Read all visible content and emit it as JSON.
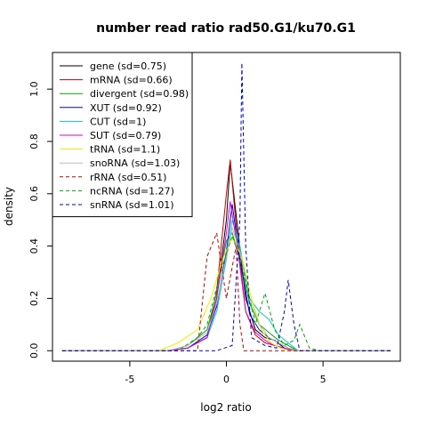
{
  "chart_data": {
    "type": "line",
    "title": "number read ratio rad50.G1/ku70.G1",
    "xlabel": "log2 ratio",
    "ylabel": "density",
    "xlim": [
      -9,
      9
    ],
    "ylim": [
      0,
      1.1
    ],
    "xticks": [
      -5,
      0,
      5
    ],
    "yticks": [
      0.0,
      0.2,
      0.4,
      0.6,
      0.8,
      1.0
    ],
    "xtick_labels": [
      "-5",
      "0",
      "5"
    ],
    "ytick_labels": [
      "0.0",
      "0.2",
      "0.4",
      "0.6",
      "0.8",
      "1.0"
    ],
    "legend_position": "top-left",
    "grid": false,
    "series": [
      {
        "name": "gene (sd=0.75)",
        "color": "#000000",
        "dash": "solid",
        "points": [
          [
            -8.5,
            0
          ],
          [
            -3,
            0
          ],
          [
            -2,
            0.01
          ],
          [
            -1,
            0.05
          ],
          [
            -0.5,
            0.2
          ],
          [
            0,
            0.5
          ],
          [
            0.2,
            0.72
          ],
          [
            0.5,
            0.52
          ],
          [
            1,
            0.2
          ],
          [
            1.5,
            0.08
          ],
          [
            2,
            0.05
          ],
          [
            2.5,
            0.04
          ],
          [
            3,
            0.01
          ],
          [
            3.5,
            0
          ],
          [
            8.5,
            0
          ]
        ]
      },
      {
        "name": "mRNA (sd=0.66)",
        "color": "#cc0000",
        "dash": "solid",
        "points": [
          [
            -8.5,
            0
          ],
          [
            -3,
            0
          ],
          [
            -2,
            0.01
          ],
          [
            -1,
            0.05
          ],
          [
            -0.5,
            0.23
          ],
          [
            0,
            0.6
          ],
          [
            0.2,
            0.73
          ],
          [
            0.5,
            0.48
          ],
          [
            1,
            0.15
          ],
          [
            1.5,
            0.06
          ],
          [
            2,
            0.03
          ],
          [
            2.5,
            0.02
          ],
          [
            3,
            0.01
          ],
          [
            3.5,
            0
          ],
          [
            8.5,
            0
          ]
        ]
      },
      {
        "name": "divergent (sd=0.98)",
        "color": "#00aa00",
        "dash": "solid",
        "points": [
          [
            -8.5,
            0
          ],
          [
            -3,
            0
          ],
          [
            -2,
            0.02
          ],
          [
            -1,
            0.08
          ],
          [
            -0.5,
            0.22
          ],
          [
            0,
            0.42
          ],
          [
            0.3,
            0.45
          ],
          [
            0.7,
            0.35
          ],
          [
            1.2,
            0.18
          ],
          [
            1.7,
            0.1
          ],
          [
            2.2,
            0.07
          ],
          [
            2.7,
            0.04
          ],
          [
            3.2,
            0.02
          ],
          [
            3.7,
            0
          ],
          [
            8.5,
            0
          ]
        ]
      },
      {
        "name": "XUT (sd=0.92)",
        "color": "#0000cc",
        "dash": "solid",
        "points": [
          [
            -8.5,
            0
          ],
          [
            -3,
            0
          ],
          [
            -2,
            0.01
          ],
          [
            -1,
            0.06
          ],
          [
            -0.5,
            0.17
          ],
          [
            0,
            0.38
          ],
          [
            0.3,
            0.56
          ],
          [
            0.7,
            0.35
          ],
          [
            1.2,
            0.14
          ],
          [
            1.7,
            0.08
          ],
          [
            2.2,
            0.05
          ],
          [
            2.7,
            0.03
          ],
          [
            3.2,
            0.01
          ],
          [
            3.7,
            0
          ],
          [
            8.5,
            0
          ]
        ]
      },
      {
        "name": "CUT (sd=1)",
        "color": "#00cccc",
        "dash": "solid",
        "points": [
          [
            -8.5,
            0
          ],
          [
            -3,
            0
          ],
          [
            -2,
            0.01
          ],
          [
            -1,
            0.05
          ],
          [
            -0.5,
            0.15
          ],
          [
            0,
            0.35
          ],
          [
            0.3,
            0.5
          ],
          [
            0.7,
            0.4
          ],
          [
            1.2,
            0.2
          ],
          [
            1.7,
            0.15
          ],
          [
            2.2,
            0.12
          ],
          [
            2.7,
            0.06
          ],
          [
            3.2,
            0.03
          ],
          [
            3.7,
            0
          ],
          [
            8.5,
            0
          ]
        ]
      },
      {
        "name": "SUT (sd=0.79)",
        "color": "#dd00dd",
        "dash": "solid",
        "points": [
          [
            -8.5,
            0
          ],
          [
            -3,
            0
          ],
          [
            -2,
            0.01
          ],
          [
            -1,
            0.05
          ],
          [
            -0.5,
            0.2
          ],
          [
            0,
            0.45
          ],
          [
            0.2,
            0.57
          ],
          [
            0.6,
            0.38
          ],
          [
            1,
            0.15
          ],
          [
            1.5,
            0.07
          ],
          [
            2,
            0.04
          ],
          [
            2.5,
            0.02
          ],
          [
            3,
            0.01
          ],
          [
            3.5,
            0
          ],
          [
            8.5,
            0
          ]
        ]
      },
      {
        "name": "tRNA (sd=1.1)",
        "color": "#eeee00",
        "dash": "solid",
        "points": [
          [
            -8.5,
            0
          ],
          [
            -3.5,
            0
          ],
          [
            -2.5,
            0.03
          ],
          [
            -1.5,
            0.08
          ],
          [
            -0.8,
            0.2
          ],
          [
            -0.2,
            0.35
          ],
          [
            0.3,
            0.43
          ],
          [
            0.8,
            0.36
          ],
          [
            1.3,
            0.2
          ],
          [
            1.8,
            0.08
          ],
          [
            2.3,
            0.03
          ],
          [
            2.8,
            0.01
          ],
          [
            3.3,
            0
          ],
          [
            8.5,
            0
          ]
        ]
      },
      {
        "name": "snoRNA (sd=1.03)",
        "color": "#bbbbbb",
        "dash": "solid",
        "points": [
          [
            -8.5,
            0
          ],
          [
            -3,
            0
          ],
          [
            -2,
            0.02
          ],
          [
            -1,
            0.07
          ],
          [
            -0.5,
            0.18
          ],
          [
            0,
            0.36
          ],
          [
            0.3,
            0.47
          ],
          [
            0.7,
            0.38
          ],
          [
            1.2,
            0.2
          ],
          [
            1.7,
            0.1
          ],
          [
            2.2,
            0.05
          ],
          [
            2.7,
            0.03
          ],
          [
            3.2,
            0.01
          ],
          [
            3.7,
            0
          ],
          [
            8.5,
            0
          ]
        ]
      },
      {
        "name": "rRNA (sd=0.51)",
        "color": "#cc0000",
        "dash": "dashed",
        "points": [
          [
            -8.5,
            0
          ],
          [
            -1.5,
            0
          ],
          [
            -1,
            0.36
          ],
          [
            -0.5,
            0.45
          ],
          [
            0,
            0.2
          ],
          [
            0.5,
            0.4
          ],
          [
            0.7,
            0.1
          ],
          [
            0.9,
            0
          ],
          [
            8.5,
            0
          ]
        ]
      },
      {
        "name": "ncRNA (sd=1.27)",
        "color": "#00aa00",
        "dash": "dashed",
        "points": [
          [
            -8.5,
            0
          ],
          [
            -2.5,
            0
          ],
          [
            -1.5,
            0.05
          ],
          [
            -1,
            0.1
          ],
          [
            -0.3,
            0.3
          ],
          [
            0.3,
            0.44
          ],
          [
            0.9,
            0.3
          ],
          [
            1.5,
            0.1
          ],
          [
            2,
            0.22
          ],
          [
            2.5,
            0.08
          ],
          [
            3,
            0.02
          ],
          [
            3.5,
            0.04
          ],
          [
            3.8,
            0.1
          ],
          [
            4.3,
            0.01
          ],
          [
            4.8,
            0
          ],
          [
            8.5,
            0
          ]
        ]
      },
      {
        "name": "snRNA (sd=1.01)",
        "color": "#0000cc",
        "dash": "dashed",
        "points": [
          [
            -8.5,
            0
          ],
          [
            -0.5,
            0
          ],
          [
            0.3,
            0.02
          ],
          [
            0.7,
            0.5
          ],
          [
            0.8,
            1.1
          ],
          [
            1.0,
            0.4
          ],
          [
            1.3,
            0.05
          ],
          [
            2,
            0.02
          ],
          [
            2.6,
            0.01
          ],
          [
            3,
            0.15
          ],
          [
            3.2,
            0.27
          ],
          [
            3.5,
            0.1
          ],
          [
            3.8,
            0
          ],
          [
            8.5,
            0
          ]
        ]
      }
    ]
  }
}
